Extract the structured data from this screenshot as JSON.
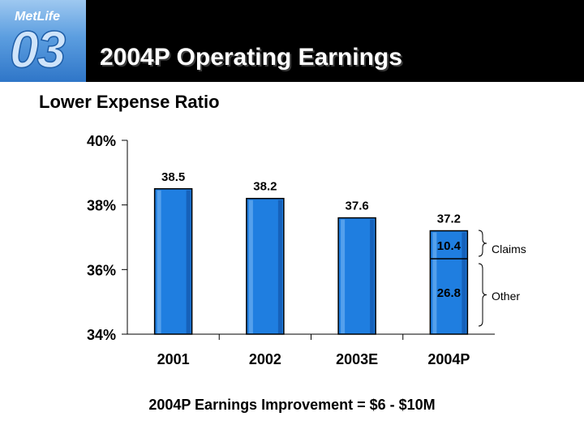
{
  "header": {
    "logo_text": "MetLife",
    "logo_year": "03",
    "title": "2004P Operating Earnings"
  },
  "subtitle": "Lower Expense Ratio",
  "footer": "2004P Earnings Improvement = $6 - $10M",
  "colors": {
    "bar": "#1f7ee0",
    "bar_dark": "#0a3f8c",
    "header_bg": "#000000"
  },
  "chart_data": {
    "type": "bar",
    "categories": [
      "2001",
      "2002",
      "2003E",
      "2004P"
    ],
    "values": [
      38.5,
      38.2,
      37.6,
      37.2
    ],
    "value_labels": [
      "38.5",
      "38.2",
      "37.6",
      "37.2"
    ],
    "ylim": [
      34,
      40
    ],
    "yticks": [
      34,
      36,
      38,
      40
    ],
    "ytick_labels": [
      "34%",
      "36%",
      "38%",
      "40%"
    ],
    "stacked_breakdown": {
      "category": "2004P",
      "parts": [
        {
          "label": "Other",
          "value": "26.8"
        },
        {
          "label": "Claims",
          "value": "10.4"
        }
      ]
    }
  }
}
